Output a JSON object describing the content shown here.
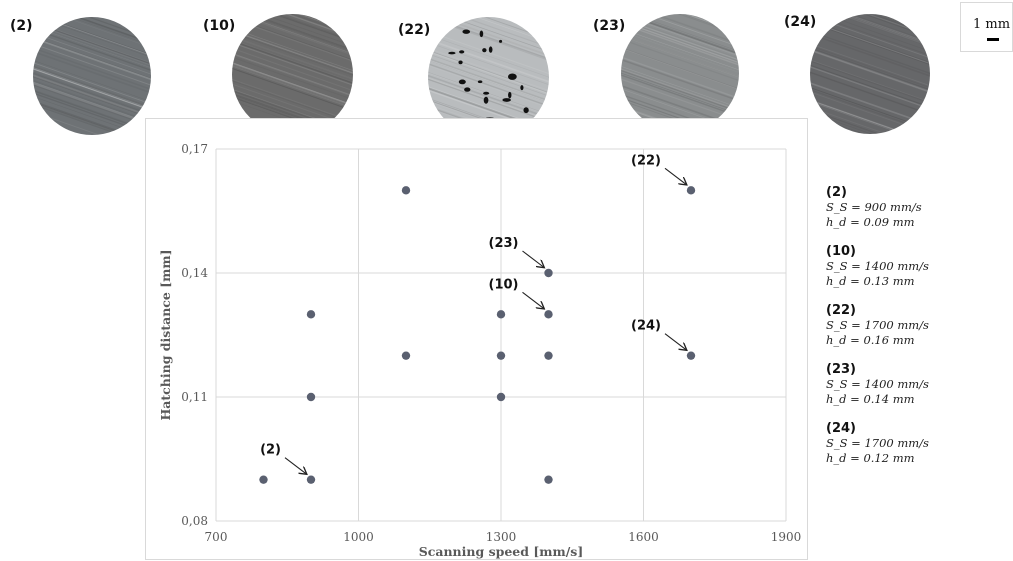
{
  "micrographs": [
    {
      "label": "(2)",
      "tone": "#6e7275",
      "pores": 0
    },
    {
      "label": "(10)",
      "tone": "#6b6b6b",
      "pores": 0
    },
    {
      "label": "(22)",
      "tone": "#b9bcbe",
      "pores": 1
    },
    {
      "label": "(23)",
      "tone": "#8a8d8e",
      "pores": 0
    },
    {
      "label": "(24)",
      "tone": "#666769",
      "pores": 0
    }
  ],
  "scalebar": {
    "label": "1 mm"
  },
  "legend": [
    {
      "id": "(2)",
      "ss": "S_S = 900 mm/s",
      "hd": "h_d = 0.09 mm"
    },
    {
      "id": "(10)",
      "ss": "S_S = 1400 mm/s",
      "hd": "h_d = 0.13 mm"
    },
    {
      "id": "(22)",
      "ss": "S_S = 1700 mm/s",
      "hd": "h_d = 0.16 mm"
    },
    {
      "id": "(23)",
      "ss": "S_S = 1400 mm/s",
      "hd": "h_d = 0.14 mm"
    },
    {
      "id": "(24)",
      "ss": "S_S = 1700 mm/s",
      "hd": "h_d = 0.12 mm"
    }
  ],
  "chart_data": {
    "type": "scatter",
    "xlabel": "Scanning speed [mm/s]",
    "ylabel": "Hatching distance [mm]",
    "xlim": [
      700,
      1900
    ],
    "ylim": [
      0.08,
      0.17
    ],
    "xticks": [
      700,
      1000,
      1300,
      1600,
      1900
    ],
    "xtick_labels": [
      "700",
      "1000",
      "1300",
      "1600",
      "1900"
    ],
    "yticks": [
      0.08,
      0.11,
      0.14,
      0.17
    ],
    "ytick_labels": [
      "0,08",
      "0,11",
      "0,14",
      "0,17"
    ],
    "grid": true,
    "point_color": "#5a6070",
    "points": [
      {
        "x": 800,
        "y": 0.09
      },
      {
        "x": 900,
        "y": 0.09
      },
      {
        "x": 900,
        "y": 0.11
      },
      {
        "x": 900,
        "y": 0.13
      },
      {
        "x": 1100,
        "y": 0.12
      },
      {
        "x": 1100,
        "y": 0.16
      },
      {
        "x": 1300,
        "y": 0.11
      },
      {
        "x": 1300,
        "y": 0.12
      },
      {
        "x": 1300,
        "y": 0.13
      },
      {
        "x": 1400,
        "y": 0.09
      },
      {
        "x": 1400,
        "y": 0.12
      },
      {
        "x": 1400,
        "y": 0.13
      },
      {
        "x": 1400,
        "y": 0.14
      },
      {
        "x": 1700,
        "y": 0.12
      },
      {
        "x": 1700,
        "y": 0.16
      }
    ],
    "annotations": [
      {
        "text": "(2)",
        "x": 900,
        "y": 0.09
      },
      {
        "text": "(10)",
        "x": 1400,
        "y": 0.13
      },
      {
        "text": "(23)",
        "x": 1400,
        "y": 0.14
      },
      {
        "text": "(24)",
        "x": 1700,
        "y": 0.12
      },
      {
        "text": "(22)",
        "x": 1700,
        "y": 0.16
      }
    ]
  }
}
